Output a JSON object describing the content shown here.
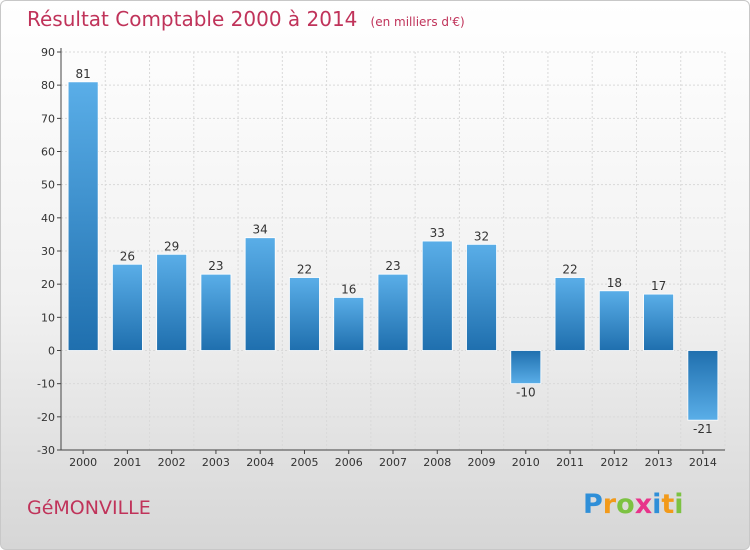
{
  "title": "Résultat Comptable 2000 à 2014",
  "unit": "(en milliers d'€)",
  "place": "GéMONVILLE",
  "logo": {
    "letters": [
      "P",
      "r",
      "o",
      "x",
      "i",
      "t",
      "i"
    ],
    "colors": [
      "#2f8fd8",
      "#f29a1a",
      "#7cc242",
      "#e8338a",
      "#2f8fd8",
      "#f29a1a",
      "#7cc242"
    ]
  },
  "chart_data": {
    "type": "bar",
    "categories": [
      "2000",
      "2001",
      "2002",
      "2003",
      "2004",
      "2005",
      "2006",
      "2007",
      "2008",
      "2009",
      "2010",
      "2011",
      "2012",
      "2013",
      "2014"
    ],
    "values": [
      81,
      26,
      29,
      23,
      34,
      22,
      16,
      23,
      33,
      32,
      -10,
      22,
      18,
      17,
      -21
    ],
    "value_labels": [
      "81",
      "26",
      "29",
      "23",
      "34",
      "22",
      "16",
      "23",
      "33",
      "32",
      "-10",
      "22",
      "18",
      "17",
      "-21"
    ],
    "yticks": [
      -30,
      -20,
      -10,
      0,
      10,
      20,
      30,
      40,
      50,
      60,
      70,
      80,
      90
    ],
    "ytick_labels": [
      "-30",
      "-20",
      "-10",
      "0",
      "10",
      "20",
      "30",
      "40",
      "50",
      "60",
      "70",
      "80",
      "90"
    ],
    "ylim": [
      -30,
      90
    ],
    "grid": true,
    "bar_colors": {
      "light": "#5aaee8",
      "dark": "#1f6fae"
    }
  }
}
